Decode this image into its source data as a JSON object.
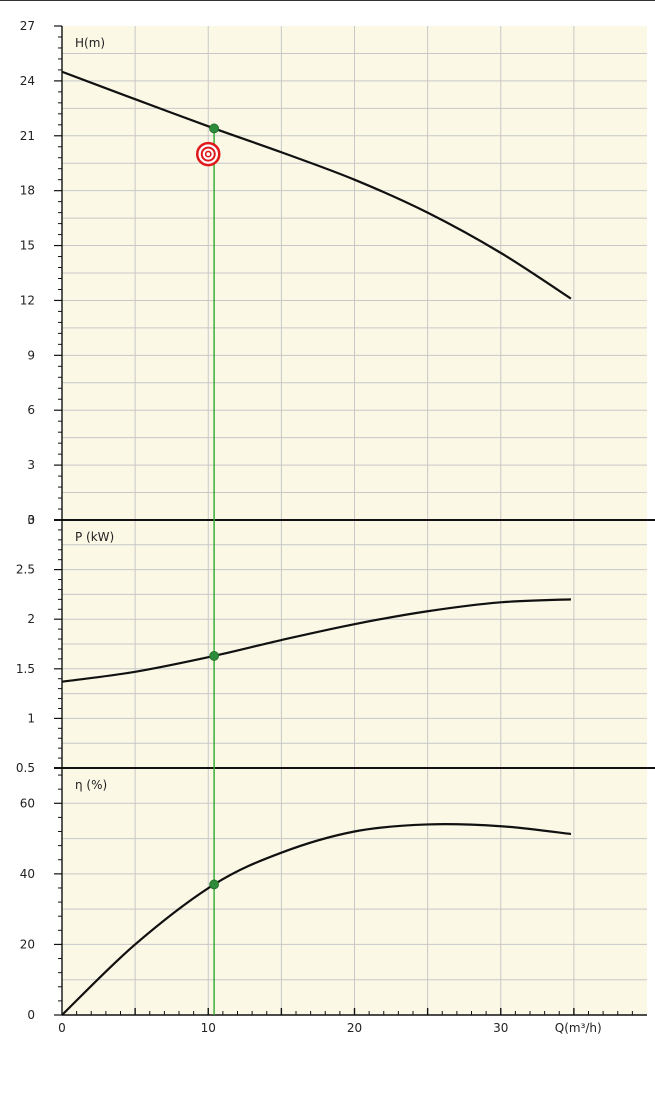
{
  "chart_data": {
    "type": "line",
    "x_axis": {
      "label": "Q(m³/h)",
      "range": [
        0,
        40
      ],
      "ticks": [
        0,
        10,
        20,
        30
      ]
    },
    "panels": [
      {
        "id": "head",
        "label": "H(m)",
        "ylim": [
          0,
          27
        ],
        "ticks": [
          0,
          3,
          6,
          9,
          12,
          15,
          18,
          21,
          24,
          27
        ],
        "series": [
          {
            "x": [
              0,
              5,
              10.4,
              15,
              20,
              25,
              30,
              34.8
            ],
            "y": [
              24.5,
              23.0,
              21.4,
              20.1,
              18.6,
              16.8,
              14.6,
              12.1
            ]
          }
        ],
        "operating_point": {
          "x": 10.4,
          "y": 21.4
        },
        "target_marker": {
          "x": 10.0,
          "y": 20.0
        }
      },
      {
        "id": "power",
        "label": "P (kW)",
        "ylim": [
          0.5,
          3
        ],
        "ticks": [
          0.5,
          1,
          1.5,
          2,
          2.5,
          3
        ],
        "series": [
          {
            "x": [
              0,
              5,
              10.4,
              15,
              20,
              25,
              30,
              34.8
            ],
            "y": [
              1.37,
              1.47,
              1.63,
              1.79,
              1.95,
              2.08,
              2.17,
              2.2
            ]
          }
        ],
        "operating_point": {
          "x": 10.4,
          "y": 1.63
        }
      },
      {
        "id": "efficiency",
        "label": "η (%)",
        "ylim": [
          0,
          70
        ],
        "ticks": [
          0,
          20,
          40,
          60
        ],
        "series": [
          {
            "x": [
              0,
              5,
              10.4,
              15,
              20,
              25,
              30,
              34.8
            ],
            "y": [
              0,
              20,
              37,
              46,
              52,
              54,
              53.5,
              51.3
            ]
          }
        ],
        "operating_point": {
          "x": 10.4,
          "y": 37
        }
      }
    ],
    "operating_x": 10.4,
    "grid": true,
    "colors": {
      "background": "#fbf8e6",
      "grid": "#c8c8c8",
      "curve": "#111111",
      "operating_line": "#2eaa2e",
      "operating_dot": "#2e8b3a",
      "target": "#e0191b"
    }
  }
}
